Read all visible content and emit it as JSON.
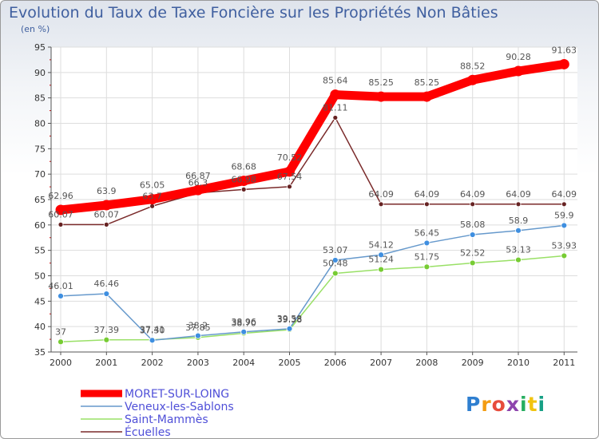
{
  "chart_data": {
    "type": "line",
    "title": "Evolution du Taux de Taxe Foncière sur les Propriétés Non Bâties",
    "subtitle": "(en %)",
    "xlabel": "",
    "ylabel": "",
    "x": [
      "2000",
      "2001",
      "2002",
      "2003",
      "2004",
      "2005",
      "2006",
      "2007",
      "2008",
      "2009",
      "2010",
      "2011"
    ],
    "ylim": [
      35,
      95
    ],
    "yticks": [
      35,
      40,
      45,
      50,
      55,
      60,
      65,
      70,
      75,
      80,
      85,
      90,
      95
    ],
    "grid": true,
    "legend_position": "bottom-left",
    "series": [
      {
        "name": "MORET-SUR-LOING",
        "color": "#ff0000",
        "marker_color": "#ff0000",
        "values": [
          62.96,
          63.9,
          65.05,
          66.87,
          68.68,
          70.52,
          85.64,
          85.25,
          85.25,
          88.52,
          90.28,
          91.63
        ],
        "labels": [
          "62.96",
          "63.9",
          "65.05",
          "66.87",
          "68.68",
          "70.52",
          "85.64",
          "85.25",
          "85.25",
          "88.52",
          "90.28",
          "91.63"
        ]
      },
      {
        "name": "Veneux-les-Sablons",
        "color": "#6699cc",
        "marker_color": "#3f8fe0",
        "values": [
          46.01,
          46.46,
          37.3,
          38.2,
          38.96,
          39.58,
          53.07,
          54.12,
          56.45,
          58.08,
          58.9,
          59.9
        ],
        "labels": [
          "46.01",
          "46.46",
          "37.30",
          "38.2",
          "38.96",
          "39.58",
          "53.07",
          "54.12",
          "56.45",
          "58.08",
          "58.9",
          "59.9"
        ]
      },
      {
        "name": "Saint-Mammès",
        "color": "#99e066",
        "marker_color": "#77cc33",
        "values": [
          37,
          37.39,
          37.41,
          37.85,
          38.7,
          39.38,
          50.48,
          51.24,
          51.75,
          52.52,
          53.13,
          53.93
        ],
        "labels": [
          "37",
          "37.39",
          "37.41",
          "37.85",
          "38.70",
          "39.38",
          "50.48",
          "51.24",
          "51.75",
          "52.52",
          "53.13",
          "53.93"
        ]
      },
      {
        "name": "Écuelles",
        "color": "#7a2a2a",
        "marker_color": "#662222",
        "values": [
          60.07,
          60.07,
          63.7,
          66.3,
          66.98,
          67.54,
          81.11,
          64.09,
          64.09,
          64.09,
          64.09,
          64.09
        ],
        "labels": [
          "60.07",
          "60.07",
          "63.7",
          "66.3",
          "66.98",
          "67.54",
          "81.11",
          "64.09",
          "64.09",
          "64.09",
          "64.09",
          "64.09"
        ]
      }
    ]
  },
  "branding": {
    "logo_letters": [
      "P",
      "r",
      "o",
      "x",
      "i",
      "t",
      "i"
    ],
    "logo_colors": [
      "#2f7fd0",
      "#f39c12",
      "#e74c3c",
      "#8e44ad",
      "#27ae60",
      "#f1c40f",
      "#16a085"
    ]
  }
}
